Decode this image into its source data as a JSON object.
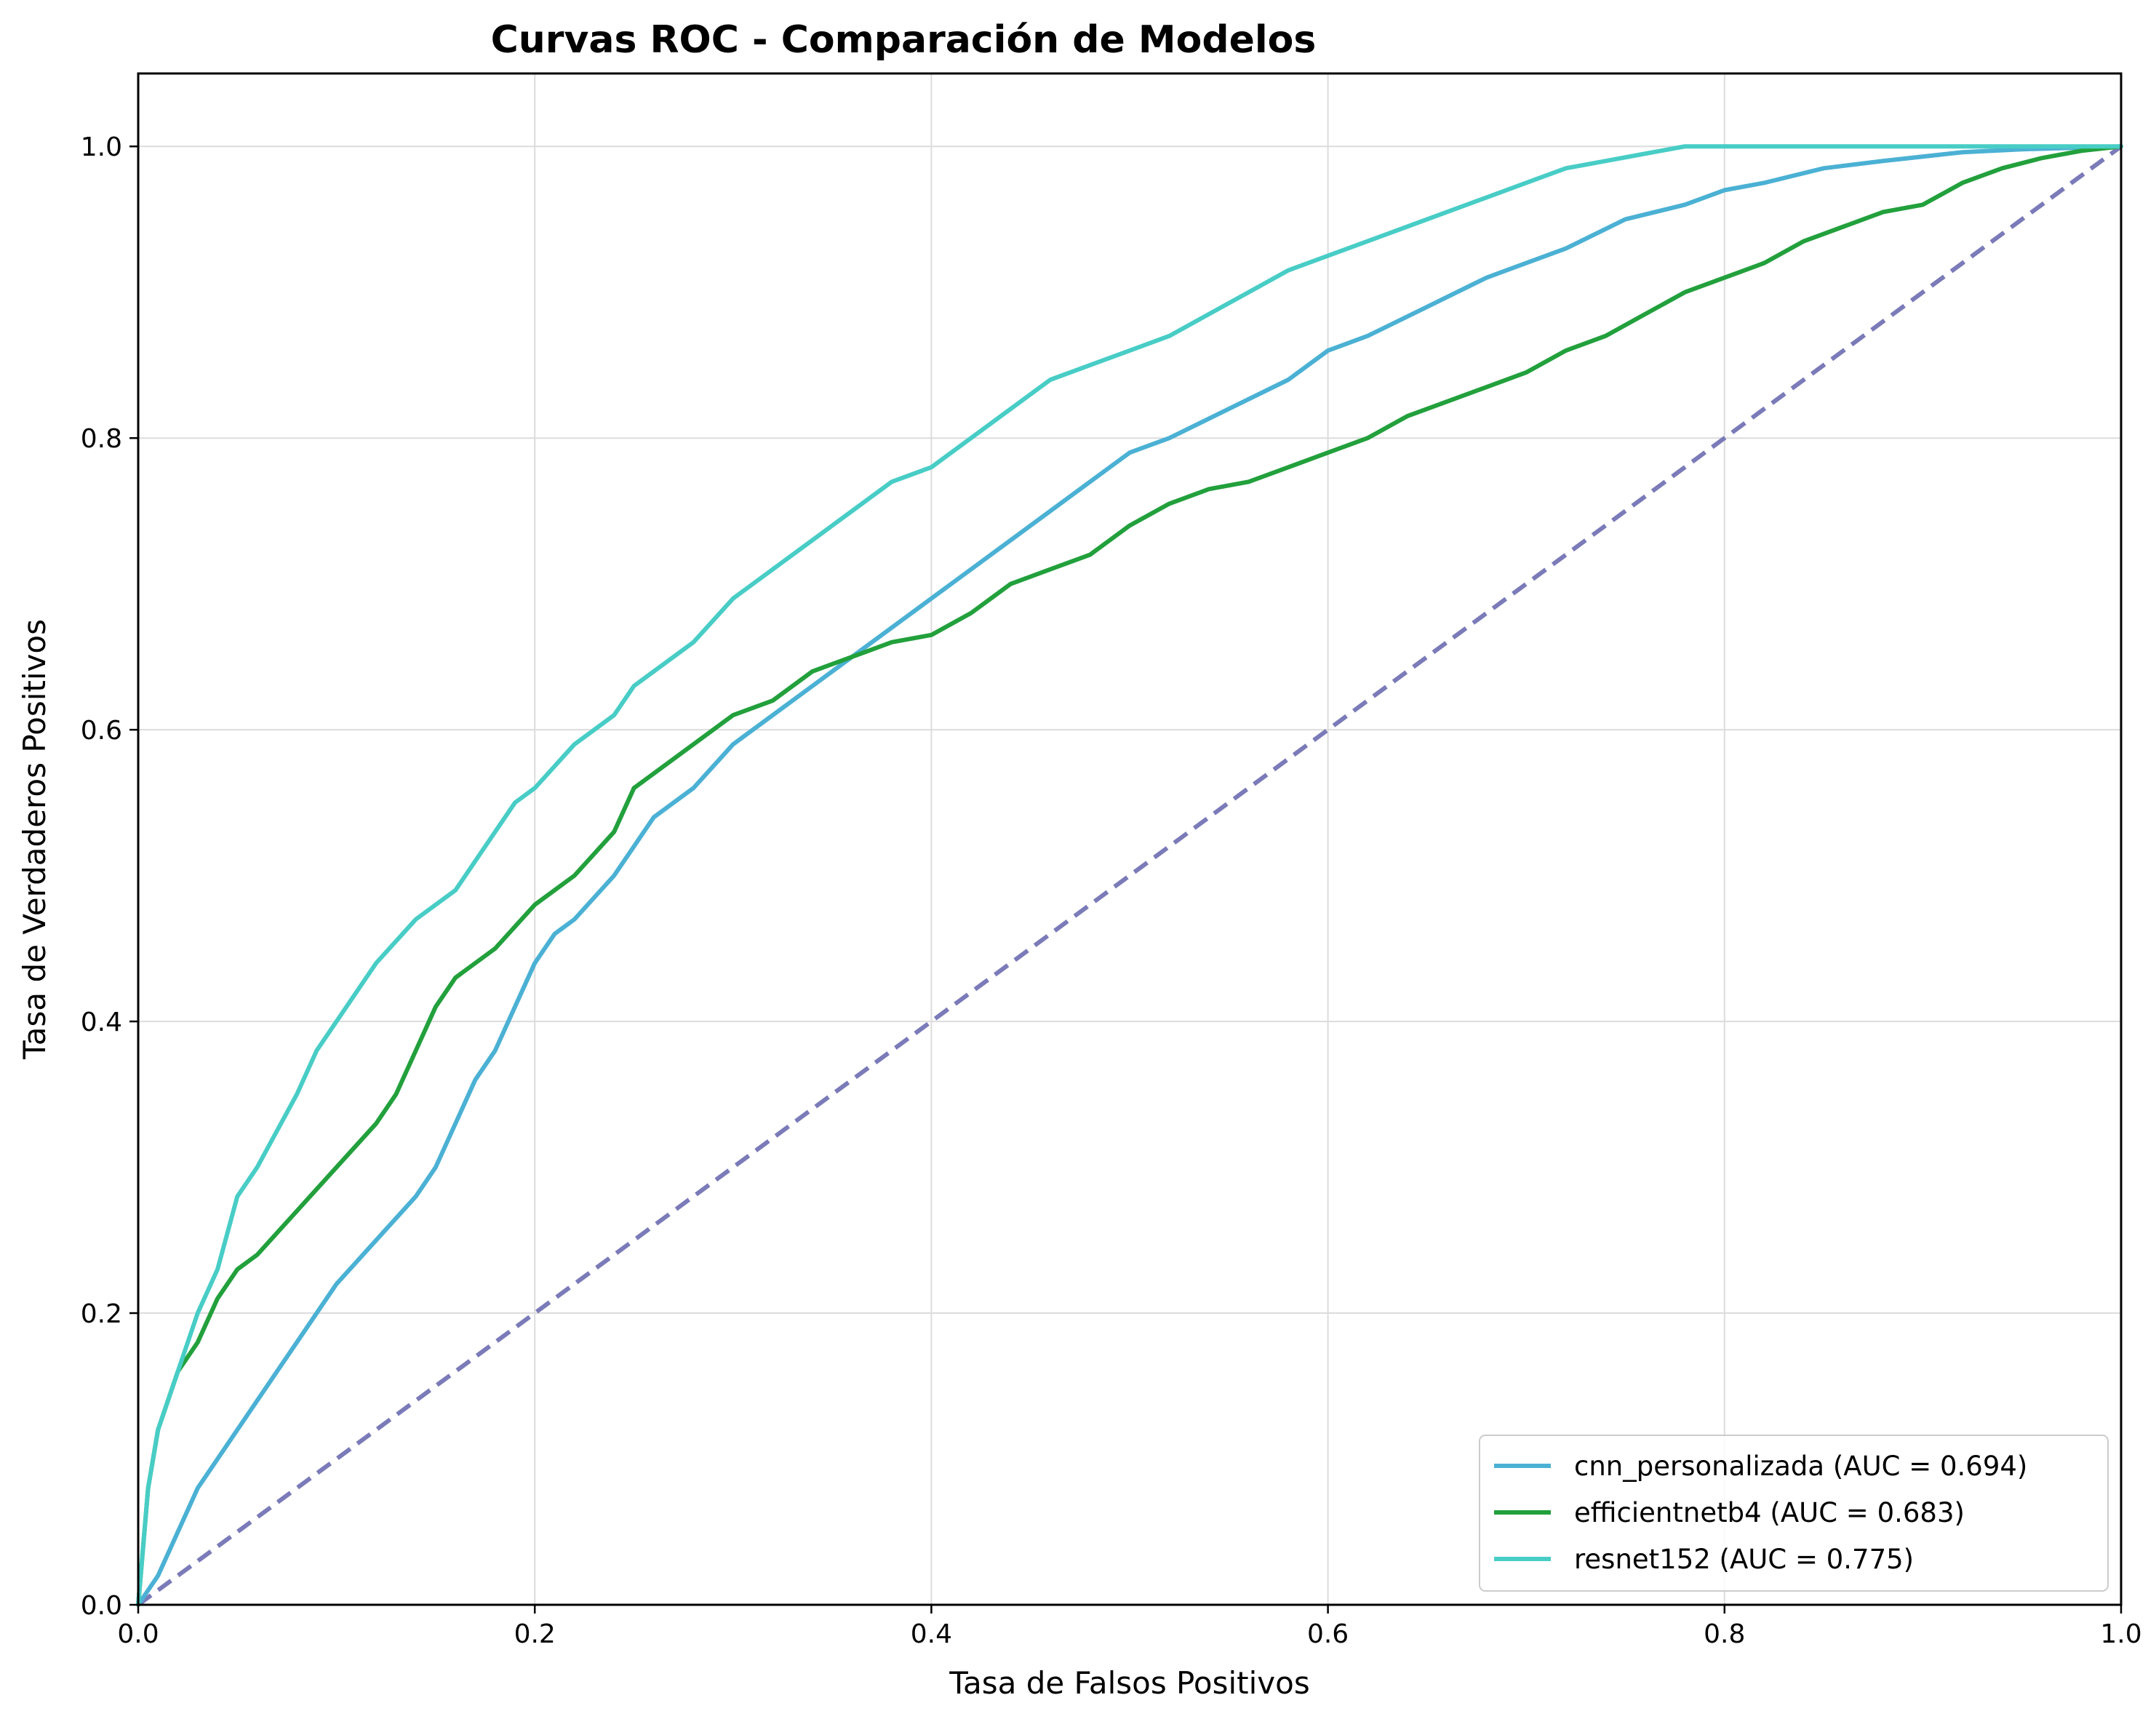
{
  "chart_data": {
    "type": "line",
    "title": "Curvas ROC - Comparación de Modelos",
    "xlabel": "Tasa de Falsos Positivos",
    "ylabel": "Tasa de Verdaderos Positivos",
    "xlim": [
      0.0,
      1.0
    ],
    "ylim": [
      0.0,
      1.05
    ],
    "xticks": [
      "0.0",
      "0.2",
      "0.4",
      "0.6",
      "0.8",
      "1.0"
    ],
    "yticks": [
      "0.0",
      "0.2",
      "0.4",
      "0.6",
      "0.8",
      "1.0"
    ],
    "grid": true,
    "legend_position": "bottom-right",
    "series": [
      {
        "name": "cnn_personalizada (AUC = 0.694)",
        "color": "#4BB1D4",
        "x": [
          0.0,
          0.01,
          0.02,
          0.03,
          0.04,
          0.05,
          0.06,
          0.07,
          0.08,
          0.09,
          0.1,
          0.12,
          0.14,
          0.15,
          0.16,
          0.17,
          0.18,
          0.19,
          0.2,
          0.21,
          0.22,
          0.24,
          0.25,
          0.26,
          0.28,
          0.3,
          0.32,
          0.34,
          0.36,
          0.38,
          0.4,
          0.42,
          0.44,
          0.46,
          0.48,
          0.5,
          0.52,
          0.55,
          0.58,
          0.6,
          0.62,
          0.65,
          0.68,
          0.7,
          0.72,
          0.75,
          0.78,
          0.8,
          0.82,
          0.85,
          0.88,
          0.9,
          0.92,
          0.95,
          1.0
        ],
        "y": [
          0.0,
          0.02,
          0.05,
          0.08,
          0.1,
          0.12,
          0.14,
          0.16,
          0.18,
          0.2,
          0.22,
          0.25,
          0.28,
          0.3,
          0.33,
          0.36,
          0.38,
          0.41,
          0.44,
          0.46,
          0.47,
          0.5,
          0.52,
          0.54,
          0.56,
          0.59,
          0.61,
          0.63,
          0.65,
          0.67,
          0.69,
          0.71,
          0.73,
          0.75,
          0.77,
          0.79,
          0.8,
          0.82,
          0.84,
          0.86,
          0.87,
          0.89,
          0.91,
          0.92,
          0.93,
          0.95,
          0.96,
          0.97,
          0.975,
          0.985,
          0.99,
          0.993,
          0.996,
          0.998,
          1.0
        ]
      },
      {
        "name": "efficientnetb4 (AUC = 0.683)",
        "color": "#22A03C",
        "x": [
          0.0,
          0.005,
          0.01,
          0.02,
          0.03,
          0.04,
          0.05,
          0.06,
          0.08,
          0.1,
          0.12,
          0.13,
          0.14,
          0.15,
          0.16,
          0.18,
          0.2,
          0.22,
          0.24,
          0.25,
          0.26,
          0.28,
          0.3,
          0.32,
          0.34,
          0.36,
          0.38,
          0.4,
          0.42,
          0.44,
          0.46,
          0.48,
          0.5,
          0.52,
          0.54,
          0.56,
          0.58,
          0.6,
          0.62,
          0.64,
          0.66,
          0.68,
          0.7,
          0.72,
          0.74,
          0.76,
          0.78,
          0.8,
          0.82,
          0.84,
          0.86,
          0.88,
          0.9,
          0.92,
          0.94,
          0.96,
          0.98,
          1.0
        ],
        "y": [
          0.0,
          0.08,
          0.12,
          0.16,
          0.18,
          0.21,
          0.23,
          0.24,
          0.27,
          0.3,
          0.33,
          0.35,
          0.38,
          0.41,
          0.43,
          0.45,
          0.48,
          0.5,
          0.53,
          0.56,
          0.57,
          0.59,
          0.61,
          0.62,
          0.64,
          0.65,
          0.66,
          0.665,
          0.68,
          0.7,
          0.71,
          0.72,
          0.74,
          0.755,
          0.765,
          0.77,
          0.78,
          0.79,
          0.8,
          0.815,
          0.825,
          0.835,
          0.845,
          0.86,
          0.87,
          0.885,
          0.9,
          0.91,
          0.92,
          0.935,
          0.945,
          0.955,
          0.96,
          0.975,
          0.985,
          0.992,
          0.997,
          1.0
        ]
      },
      {
        "name": "resnet152 (AUC = 0.775)",
        "color": "#48CDC6",
        "x": [
          0.0,
          0.005,
          0.01,
          0.02,
          0.03,
          0.04,
          0.05,
          0.06,
          0.08,
          0.09,
          0.1,
          0.12,
          0.14,
          0.16,
          0.17,
          0.18,
          0.19,
          0.2,
          0.22,
          0.24,
          0.25,
          0.26,
          0.28,
          0.3,
          0.32,
          0.34,
          0.36,
          0.38,
          0.4,
          0.42,
          0.44,
          0.46,
          0.48,
          0.5,
          0.52,
          0.54,
          0.56,
          0.58,
          0.6,
          0.62,
          0.64,
          0.66,
          0.68,
          0.7,
          0.72,
          0.74,
          0.76,
          0.78,
          0.8,
          0.85,
          0.9,
          0.95,
          1.0
        ],
        "y": [
          0.0,
          0.08,
          0.12,
          0.16,
          0.2,
          0.23,
          0.28,
          0.3,
          0.35,
          0.38,
          0.4,
          0.44,
          0.47,
          0.49,
          0.51,
          0.53,
          0.55,
          0.56,
          0.59,
          0.61,
          0.63,
          0.64,
          0.66,
          0.69,
          0.71,
          0.73,
          0.75,
          0.77,
          0.78,
          0.8,
          0.82,
          0.84,
          0.85,
          0.86,
          0.87,
          0.885,
          0.9,
          0.915,
          0.925,
          0.935,
          0.945,
          0.955,
          0.965,
          0.975,
          0.985,
          0.99,
          0.995,
          1.0,
          1.0,
          1.0,
          1.0,
          1.0,
          1.0
        ]
      }
    ],
    "reference_line": {
      "x": [
        0.0,
        1.0
      ],
      "y": [
        0.0,
        1.0
      ],
      "color": "#7B7BB9",
      "style": "dashed"
    }
  }
}
